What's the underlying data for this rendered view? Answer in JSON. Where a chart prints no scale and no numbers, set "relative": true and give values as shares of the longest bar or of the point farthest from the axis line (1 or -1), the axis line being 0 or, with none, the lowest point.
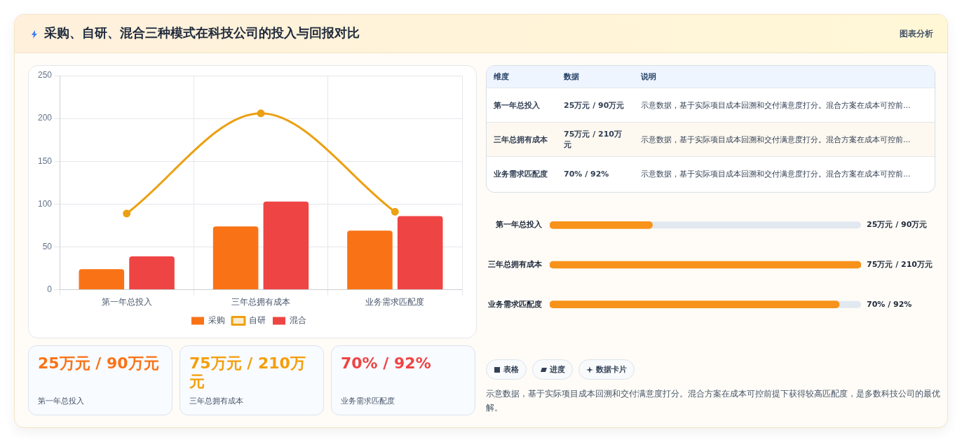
{
  "chart_data": [
    {
      "type": "bar",
      "title": "采购、自研、混合三种模式在科技公司的投入与回报对比",
      "annotations": [
        "图表分析"
      ],
      "categories": [
        "第一年总投入",
        "三年总拥有成本",
        "业务需求匹配度"
      ],
      "series": [
        {
          "name": "采购",
          "type": "bar",
          "color": "#f97316",
          "values": [
            24,
            74,
            69
          ]
        },
        {
          "name": "自研",
          "type": "line",
          "color": "#eca012",
          "values": [
            89,
            206,
            91
          ],
          "marker": "circle"
        },
        {
          "name": "混合",
          "type": "bar",
          "color": "#ef4444",
          "values": [
            39,
            103,
            86
          ]
        }
      ],
      "ylim": [
        0,
        250
      ],
      "yticks": [
        0,
        50,
        100,
        150,
        200,
        250
      ],
      "grid": true,
      "legend": "bottom"
    },
    {
      "type": "other",
      "categories": [
        "维度",
        "数据",
        "说明"
      ],
      "annotations": [
        "第一年总投入",
        "25万元 / 90万元",
        "示意数据，基于实际项目成本回溯和交付满意度打分。混合方案在成本可控前...",
        "三年总拥有成本",
        "75万元 / 210万元",
        "示意数据，基于实际项目成本回溯和交付满意度打分。混合方案在成本可控前...",
        "业务需求匹配度",
        "70% / 92%",
        "示意数据，基于实际项目成本回溯和交付满意度打分。混合方案在成本可控前..."
      ]
    },
    {
      "type": "bar",
      "orientation": "horizontal",
      "relative": true,
      "categories": [
        "第一年总投入",
        "三年总拥有成本",
        "业务需求匹配度"
      ],
      "values": [
        0.33,
        1,
        0.93
      ],
      "color": "#f7931a",
      "annotations": [
        "25万元 / 90万元",
        "75万元 / 210万元",
        "70% / 92%"
      ]
    },
    {
      "type": "other",
      "categories": [
        "第一年总投入",
        "三年总拥有成本",
        "业务需求匹配度"
      ],
      "annotations": [
        "25万元 / 90万元",
        "75万元 / 210万元",
        "70% / 92%"
      ]
    },
    {
      "type": "other",
      "categories": [
        "表格",
        "进度",
        "数据卡片"
      ],
      "annotations": [
        "示意数据，基于实际项目成本回溯和交付满意度打分。混合方案在成本可控前提下获得较高匹配度，是多数科技公司的最优解。"
      ]
    }
  ]
}
